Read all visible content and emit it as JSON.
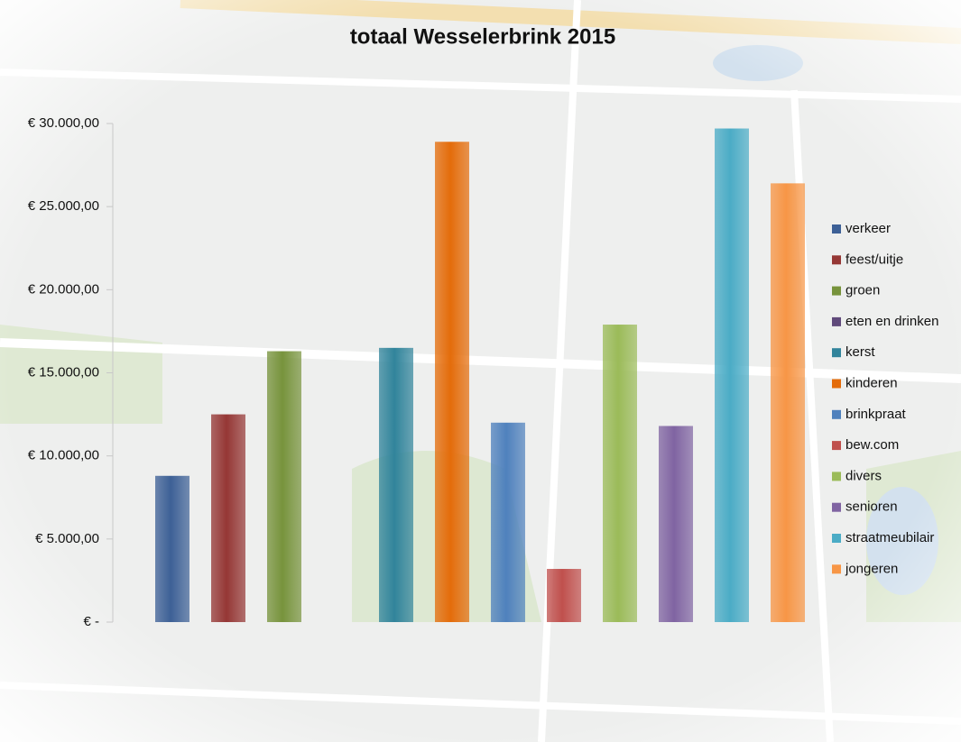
{
  "chart_data": {
    "type": "bar",
    "title": "totaal Wesselerbrink 2015",
    "series": [
      {
        "name": "verkeer",
        "color": "#3d6096",
        "values": [
          8800
        ]
      },
      {
        "name": "feest/uitje",
        "color": "#953735",
        "values": [
          12500
        ]
      },
      {
        "name": "groen",
        "color": "#77933c",
        "values": [
          16300
        ]
      },
      {
        "name": "eten en drinken",
        "color": "#604a7b",
        "values": [
          0
        ]
      },
      {
        "name": "kerst",
        "color": "#31849b",
        "values": [
          16500
        ]
      },
      {
        "name": "kinderen",
        "color": "#e46c0a",
        "values": [
          28900
        ]
      },
      {
        "name": "brinkpraat",
        "color": "#4f81bd",
        "values": [
          12000
        ]
      },
      {
        "name": "bew.com",
        "color": "#c0504d",
        "values": [
          3200
        ]
      },
      {
        "name": "divers",
        "color": "#9bbb59",
        "values": [
          17900
        ]
      },
      {
        "name": "senioren",
        "color": "#8064a2",
        "values": [
          11800
        ]
      },
      {
        "name": "straatmeubilair",
        "color": "#4bacc6",
        "values": [
          29700
        ]
      },
      {
        "name": "jongeren",
        "color": "#f79646",
        "values": [
          26400
        ]
      }
    ],
    "ylim": [
      0,
      30000
    ],
    "yticks": [
      {
        "value": 0,
        "label": "€ -"
      },
      {
        "value": 5000,
        "label": "€ 5.000,00"
      },
      {
        "value": 10000,
        "label": "€ 10.000,00"
      },
      {
        "value": 15000,
        "label": "€ 15.000,00"
      },
      {
        "value": 20000,
        "label": "€ 20.000,00"
      },
      {
        "value": 25000,
        "label": "€ 25.000,00"
      },
      {
        "value": 30000,
        "label": "€ 30.000,00"
      }
    ],
    "grid": false,
    "legend": "right"
  }
}
